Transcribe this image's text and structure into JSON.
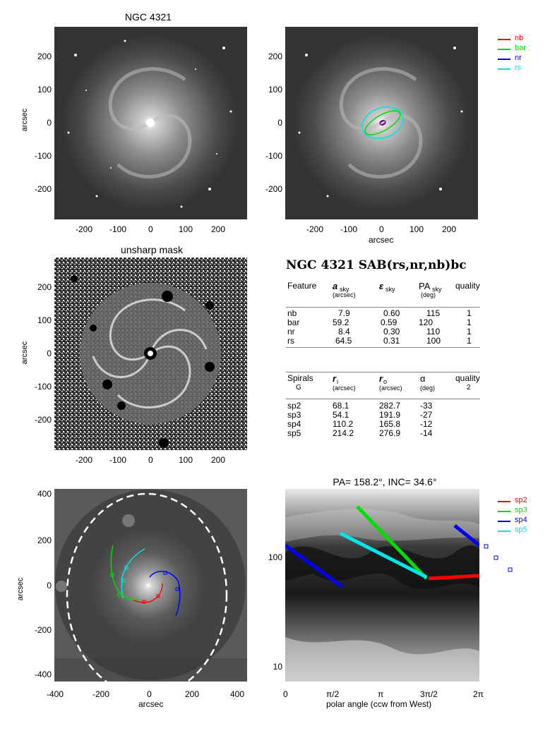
{
  "panel1": {
    "title": "NGC 4321",
    "ylabel": "arcsec",
    "xticks": [
      "-200",
      "-100",
      "0",
      "100",
      "200"
    ],
    "yticks": [
      "200",
      "100",
      "0",
      "-100",
      "-200"
    ]
  },
  "panel2": {
    "xlabel": "arcsec",
    "xticks": [
      "-200",
      "-100",
      "0",
      "100",
      "200"
    ],
    "yticks": [
      "200",
      "100",
      "0",
      "-100",
      "-200"
    ],
    "legend": [
      {
        "label": "nb",
        "color": "#ff0000"
      },
      {
        "label": "bar",
        "color": "#00dd00"
      },
      {
        "label": "nr",
        "color": "#0000ff"
      },
      {
        "label": "rs",
        "color": "#00e5e5"
      }
    ]
  },
  "panel3": {
    "title": "unsharp mask",
    "ylabel": "arcsec",
    "xticks": [
      "-200",
      "-100",
      "0",
      "100",
      "200"
    ],
    "yticks": [
      "200",
      "100",
      "0",
      "-100",
      "-200"
    ]
  },
  "table": {
    "title": "NGC 4321  SAB(rs,nr,nb)bc",
    "features_header": {
      "feature": "Feature",
      "a": "a",
      "a_sub": "sky",
      "a_unit": "(arcsec)",
      "eps": "ε",
      "eps_sub": "sky",
      "pa": "PA",
      "pa_sub": "sky",
      "pa_unit": "(deg)",
      "quality": "quality"
    },
    "features": [
      {
        "name": "nb",
        "a": "7.9",
        "eps": "0.60",
        "pa": "115",
        "q": "1"
      },
      {
        "name": "bar",
        "a": "59.2",
        "eps": "0.59",
        "pa": "120",
        "q": "1"
      },
      {
        "name": "nr",
        "a": "8.4",
        "eps": "0.30",
        "pa": "110",
        "q": "1"
      },
      {
        "name": "rs",
        "a": "64.5",
        "eps": "0.31",
        "pa": "100",
        "q": "1"
      }
    ],
    "spirals_header": {
      "spirals": "Spirals",
      "class": "G",
      "ri": "r",
      "ri_sub": "i",
      "ri_unit": "(arcsec)",
      "ro": "r",
      "ro_sub": "o",
      "ro_unit": "(arcsec)",
      "alpha": "α",
      "alpha_unit": "(deg)",
      "quality": "quality",
      "quality_val": "2"
    },
    "spirals": [
      {
        "name": "sp2",
        "ri": "68.1",
        "ro": "282.7",
        "alpha": "-33"
      },
      {
        "name": "sp3",
        "ri": "54.1",
        "ro": "191.9",
        "alpha": "-27"
      },
      {
        "name": "sp4",
        "ri": "110.2",
        "ro": "165.8",
        "alpha": "-12"
      },
      {
        "name": "sp5",
        "ri": "214.2",
        "ro": "276.9",
        "alpha": "-14"
      }
    ]
  },
  "panel5": {
    "xlabel": "arcsec",
    "ylabel": "arcsec",
    "xticks": [
      "-400",
      "-200",
      "0",
      "200",
      "400"
    ],
    "yticks": [
      "400",
      "200",
      "0",
      "-200",
      "-400"
    ]
  },
  "panel6": {
    "title": "PA= 158.2°, INC=  34.6°",
    "xlabel": "polar angle (ccw from West)",
    "xticks": [
      "0",
      "π/2",
      "π",
      "3π/2",
      "2π"
    ],
    "yticks": [
      "100",
      "10"
    ],
    "legend": [
      {
        "label": "sp2",
        "color": "#ff0000"
      },
      {
        "label": "sp3",
        "color": "#00dd00"
      },
      {
        "label": "sp4",
        "color": "#0000ff"
      },
      {
        "label": "sp5",
        "color": "#00e5e5"
      }
    ]
  }
}
